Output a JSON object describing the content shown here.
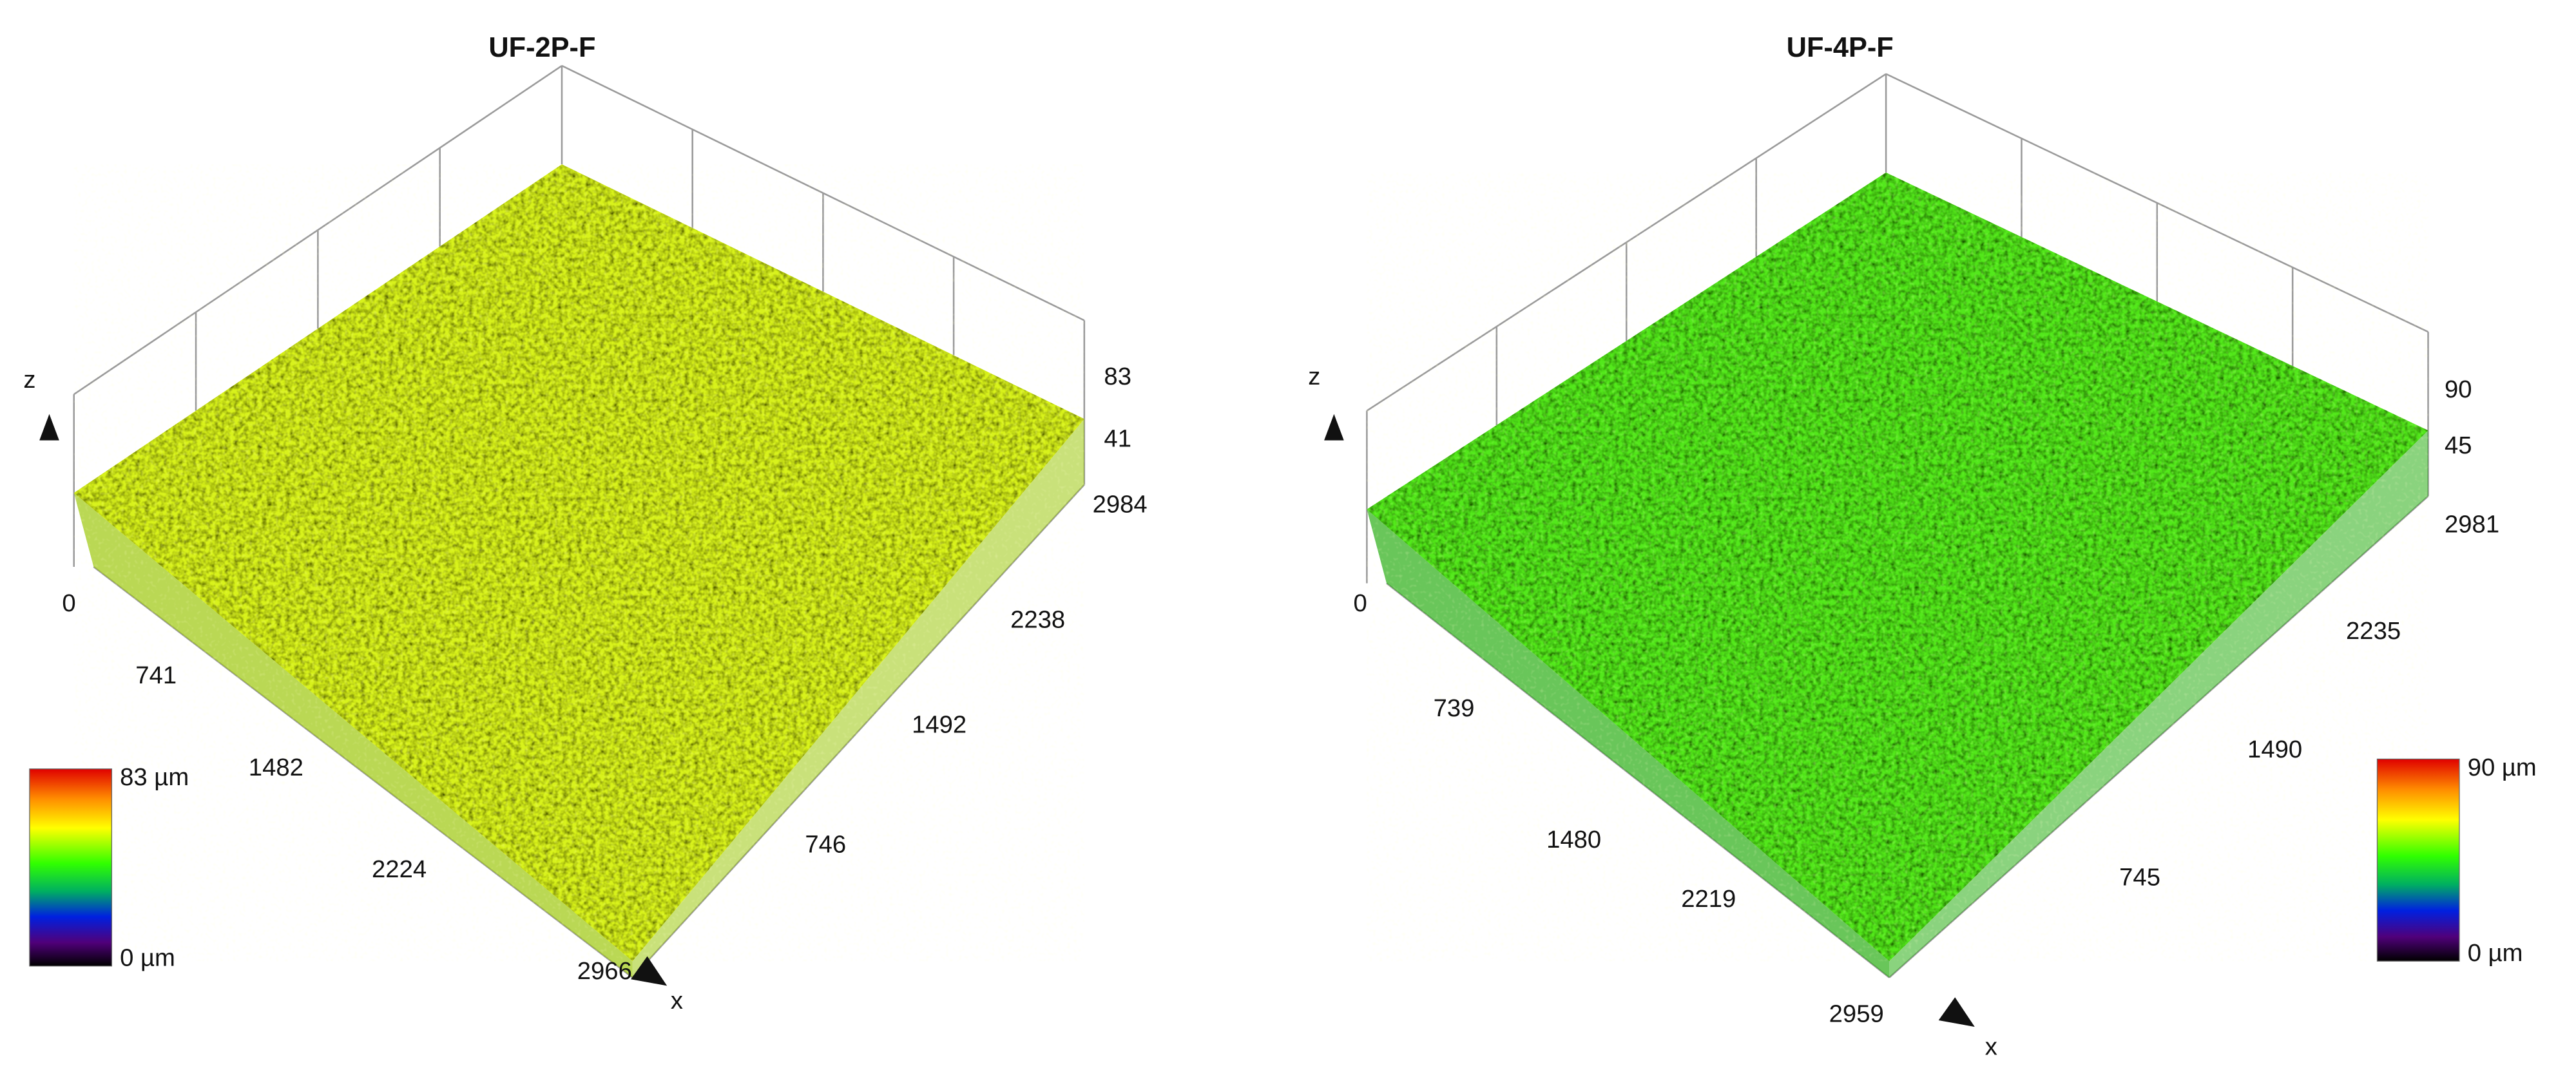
{
  "panels": [
    {
      "title": "UF-2P-F",
      "z_label": "z",
      "x_label": "x",
      "z_ticks": [
        "83",
        "41"
      ],
      "y_ticks": [
        "2984",
        "2238",
        "1492",
        "746"
      ],
      "x_ticks": [
        "0",
        "741",
        "1482",
        "2224",
        "2966"
      ],
      "colorbar": {
        "max": "83 µm",
        "min": "0 µm"
      }
    },
    {
      "title": "UF-4P-F",
      "z_label": "z",
      "x_label": "x",
      "z_ticks": [
        "90",
        "45"
      ],
      "y_ticks": [
        "2981",
        "2235",
        "1490",
        "745"
      ],
      "x_ticks": [
        "0",
        "739",
        "1480",
        "2219",
        "2959"
      ],
      "colorbar": {
        "max": "90 µm",
        "min": "0 µm"
      }
    }
  ]
}
